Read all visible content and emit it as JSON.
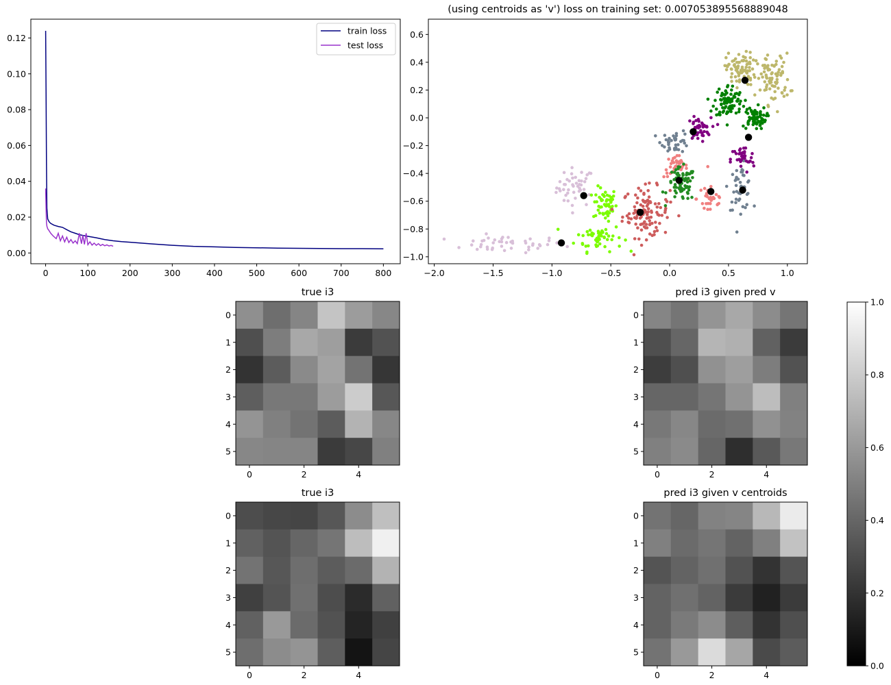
{
  "chart_data": [
    {
      "type": "line",
      "title": "",
      "xlabel": "",
      "ylabel": "",
      "xlim": [
        -35,
        840
      ],
      "ylim": [
        -0.006,
        0.1305
      ],
      "xticks": [
        0,
        100,
        200,
        300,
        400,
        500,
        600,
        700,
        800
      ],
      "xtick_labels": [
        "0",
        "100",
        "200",
        "300",
        "400",
        "500",
        "600",
        "700",
        "800"
      ],
      "yticks": [
        0.0,
        0.02,
        0.04,
        0.06,
        0.08,
        0.1,
        0.12
      ],
      "ytick_labels": [
        "0.00",
        "0.02",
        "0.04",
        "0.06",
        "0.08",
        "0.10",
        "0.12"
      ],
      "legend_position": "top-right",
      "legend": [
        "train loss",
        "test loss"
      ],
      "series": [
        {
          "name": "train loss",
          "color": "#000080",
          "x": [
            0,
            1,
            2,
            3,
            5,
            8,
            12,
            20,
            30,
            40,
            50,
            60,
            70,
            80,
            90,
            100,
            120,
            140,
            160,
            180,
            200,
            250,
            300,
            350,
            400,
            450,
            500,
            550,
            600,
            650,
            700,
            750,
            800
          ],
          "y": [
            0.124,
            0.09,
            0.05,
            0.025,
            0.019,
            0.0175,
            0.0165,
            0.0155,
            0.0148,
            0.0143,
            0.013,
            0.0118,
            0.011,
            0.0102,
            0.0097,
            0.0093,
            0.0085,
            0.0075,
            0.0068,
            0.0063,
            0.006,
            0.0051,
            0.0043,
            0.0037,
            0.0034,
            0.0031,
            0.0029,
            0.0027,
            0.0026,
            0.0025,
            0.0024,
            0.0024,
            0.0023
          ]
        },
        {
          "name": "test loss",
          "color": "#9932CC",
          "x": [
            0,
            1,
            2,
            3,
            5,
            8,
            12,
            18,
            25,
            30,
            35,
            40,
            45,
            50,
            55,
            60,
            65,
            70,
            75,
            80,
            85,
            88,
            92,
            96,
            100,
            105,
            110,
            115,
            120,
            125,
            130,
            135,
            140,
            145,
            150,
            155,
            160
          ],
          "y": [
            0.036,
            0.025,
            0.017,
            0.015,
            0.0135,
            0.0125,
            0.011,
            0.0095,
            0.008,
            0.011,
            0.0068,
            0.0095,
            0.0062,
            0.0088,
            0.0058,
            0.0075,
            0.0055,
            0.0068,
            0.0052,
            0.011,
            0.0052,
            0.01,
            0.0048,
            0.011,
            0.0046,
            0.0062,
            0.0044,
            0.0055,
            0.0043,
            0.0052,
            0.0041,
            0.0048,
            0.004,
            0.0045,
            0.0039,
            0.0042,
            0.0038
          ]
        }
      ]
    },
    {
      "type": "scatter",
      "title": "(using centroids as 'v') loss on training set: 0.007053895568889048",
      "xlabel": "",
      "ylabel": "",
      "xlim": [
        -2.05,
        1.17
      ],
      "ylim": [
        -1.05,
        0.71
      ],
      "xticks": [
        -2.0,
        -1.5,
        -1.0,
        -0.5,
        0.0,
        0.5,
        1.0
      ],
      "xtick_labels": [
        "−2.0",
        "−1.5",
        "−1.0",
        "−0.5",
        "0.0",
        "0.5",
        "1.0"
      ],
      "yticks": [
        -1.0,
        -0.8,
        -0.6,
        -0.4,
        -0.2,
        0.0,
        0.2,
        0.4,
        0.6
      ],
      "ytick_labels": [
        "−1.0",
        "−0.8",
        "−0.6",
        "−0.4",
        "−0.2",
        "0.0",
        "0.2",
        "0.4",
        "0.6"
      ],
      "clusters": [
        {
          "color": "#D8BFD8",
          "cx": -0.8,
          "cy": -0.5,
          "sx": 0.08,
          "sy": 0.07,
          "n": 45
        },
        {
          "color": "#D8BFD8",
          "cx": -1.4,
          "cy": -0.91,
          "sx": 0.25,
          "sy": 0.03,
          "n": 45
        },
        {
          "color": "#7CFC00",
          "cx": -0.55,
          "cy": -0.62,
          "sx": 0.05,
          "sy": 0.06,
          "n": 55
        },
        {
          "color": "#7CFC00",
          "cx": -0.6,
          "cy": -0.86,
          "sx": 0.1,
          "sy": 0.05,
          "n": 55
        },
        {
          "color": "#CD5C5C",
          "cx": -0.2,
          "cy": -0.68,
          "sx": 0.1,
          "sy": 0.09,
          "n": 110
        },
        {
          "color": "#F08080",
          "cx": 0.05,
          "cy": -0.35,
          "sx": 0.05,
          "sy": 0.04,
          "n": 35
        },
        {
          "color": "#F08080",
          "cx": 0.35,
          "cy": -0.58,
          "sx": 0.06,
          "sy": 0.07,
          "n": 30
        },
        {
          "color": "#228B22",
          "cx": 0.1,
          "cy": -0.48,
          "sx": 0.06,
          "sy": 0.06,
          "n": 75
        },
        {
          "color": "#708090",
          "cx": 0.05,
          "cy": -0.17,
          "sx": 0.06,
          "sy": 0.04,
          "n": 40
        },
        {
          "color": "#708090",
          "cx": 0.6,
          "cy": -0.5,
          "sx": 0.05,
          "sy": 0.08,
          "n": 45
        },
        {
          "color": "#800080",
          "cx": 0.25,
          "cy": -0.08,
          "sx": 0.05,
          "sy": 0.04,
          "n": 45
        },
        {
          "color": "#800080",
          "cx": 0.62,
          "cy": -0.3,
          "sx": 0.05,
          "sy": 0.05,
          "n": 40
        },
        {
          "color": "#008000",
          "cx": 0.5,
          "cy": 0.12,
          "sx": 0.06,
          "sy": 0.06,
          "n": 90
        },
        {
          "color": "#008000",
          "cx": 0.72,
          "cy": 0.0,
          "sx": 0.05,
          "sy": 0.04,
          "n": 70
        },
        {
          "color": "#BDB76B",
          "cx": 0.6,
          "cy": 0.35,
          "sx": 0.06,
          "sy": 0.06,
          "n": 85
        },
        {
          "color": "#BDB76B",
          "cx": 0.88,
          "cy": 0.28,
          "sx": 0.07,
          "sy": 0.09,
          "n": 85
        }
      ],
      "centroids": {
        "color": "#000000",
        "x": [
          -0.92,
          -0.73,
          -0.25,
          0.08,
          0.35,
          0.62,
          0.2,
          0.67,
          0.64
        ],
        "y": [
          -0.9,
          -0.56,
          -0.68,
          -0.45,
          -0.53,
          -0.52,
          -0.1,
          -0.14,
          0.27
        ]
      }
    },
    {
      "type": "heatmap",
      "title": "true i3",
      "xticks": [
        0,
        2,
        4
      ],
      "yticks": [
        0,
        1,
        2,
        3,
        4,
        5
      ],
      "values": [
        [
          0.56,
          0.43,
          0.52,
          0.77,
          0.61,
          0.53
        ],
        [
          0.31,
          0.49,
          0.66,
          0.62,
          0.23,
          0.32
        ],
        [
          0.2,
          0.36,
          0.54,
          0.64,
          0.45,
          0.21
        ],
        [
          0.37,
          0.47,
          0.47,
          0.61,
          0.8,
          0.34
        ],
        [
          0.58,
          0.5,
          0.45,
          0.36,
          0.7,
          0.53
        ],
        [
          0.53,
          0.52,
          0.52,
          0.23,
          0.28,
          0.5
        ]
      ]
    },
    {
      "type": "heatmap",
      "title": "pred i3 given pred v",
      "xticks": [
        0,
        2,
        4
      ],
      "yticks": [
        0,
        1,
        2,
        3,
        4,
        5
      ],
      "values": [
        [
          0.52,
          0.46,
          0.58,
          0.66,
          0.55,
          0.46
        ],
        [
          0.31,
          0.4,
          0.71,
          0.69,
          0.38,
          0.23
        ],
        [
          0.24,
          0.31,
          0.57,
          0.62,
          0.49,
          0.32
        ],
        [
          0.4,
          0.4,
          0.46,
          0.58,
          0.74,
          0.5
        ],
        [
          0.47,
          0.53,
          0.42,
          0.44,
          0.57,
          0.51
        ],
        [
          0.5,
          0.54,
          0.4,
          0.18,
          0.35,
          0.47
        ]
      ]
    },
    {
      "type": "heatmap",
      "title": "true i3",
      "xticks": [
        0,
        2,
        4
      ],
      "yticks": [
        0,
        1,
        2,
        3,
        4,
        5
      ],
      "values": [
        [
          0.3,
          0.28,
          0.27,
          0.34,
          0.55,
          0.75
        ],
        [
          0.38,
          0.33,
          0.4,
          0.46,
          0.74,
          0.94
        ],
        [
          0.45,
          0.34,
          0.43,
          0.36,
          0.42,
          0.7
        ],
        [
          0.25,
          0.33,
          0.44,
          0.3,
          0.17,
          0.38
        ],
        [
          0.38,
          0.6,
          0.42,
          0.32,
          0.14,
          0.25
        ],
        [
          0.43,
          0.55,
          0.58,
          0.37,
          0.08,
          0.27
        ]
      ]
    },
    {
      "type": "heatmap",
      "title": "pred i3 given v centroids",
      "xticks": [
        0,
        2,
        4
      ],
      "yticks": [
        0,
        1,
        2,
        3,
        4,
        5
      ],
      "values": [
        [
          0.45,
          0.4,
          0.51,
          0.52,
          0.72,
          0.92
        ],
        [
          0.5,
          0.42,
          0.46,
          0.39,
          0.5,
          0.76
        ],
        [
          0.33,
          0.39,
          0.44,
          0.32,
          0.2,
          0.33
        ],
        [
          0.39,
          0.44,
          0.39,
          0.23,
          0.13,
          0.23
        ],
        [
          0.39,
          0.48,
          0.55,
          0.37,
          0.2,
          0.31
        ],
        [
          0.45,
          0.6,
          0.86,
          0.65,
          0.29,
          0.36
        ]
      ]
    }
  ],
  "colorbar": {
    "vmin": 0.0,
    "vmax": 1.0,
    "ticks": [
      0.0,
      0.2,
      0.4,
      0.6,
      0.8,
      1.0
    ],
    "tick_labels": [
      "0.0",
      "0.2",
      "0.4",
      "0.6",
      "0.8",
      "1.0"
    ],
    "colormap": "gray"
  }
}
